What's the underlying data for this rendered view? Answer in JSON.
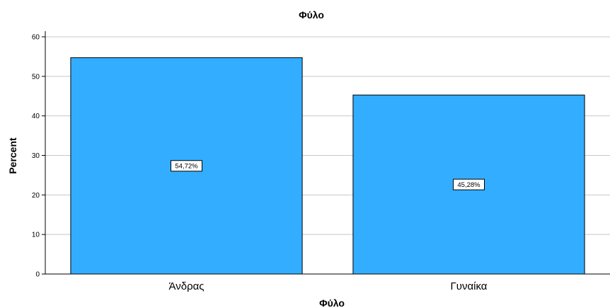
{
  "chart_data": {
    "type": "bar",
    "title": "Φύλο",
    "xlabel": "Φύλο",
    "ylabel": "Percent",
    "categories": [
      "Άνδρας",
      "Γυναίκα"
    ],
    "values": [
      54.72,
      45.28
    ],
    "data_labels": [
      "54,72%",
      "45,28%"
    ],
    "ylim": [
      0,
      60
    ],
    "yticks": [
      "0",
      "10",
      "20",
      "30",
      "40",
      "50",
      "60"
    ],
    "grid": true,
    "legend": "none",
    "colors": {
      "bar": "#33adff",
      "bar_edge": "#000000",
      "grid": "#c8c8c8"
    }
  }
}
